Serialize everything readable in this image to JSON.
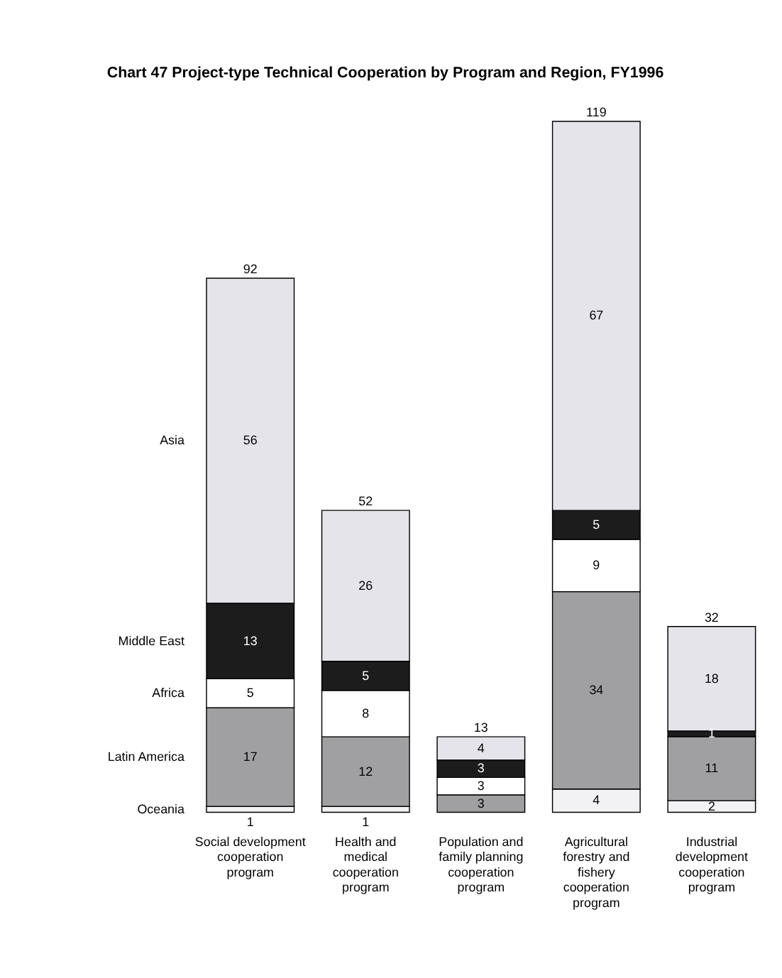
{
  "chart_data": {
    "type": "bar",
    "title": "Chart 47  Project-type Technical Cooperation by Program and Region, FY1996",
    "categories": [
      "Social development\ncooperation\nprogram",
      "Health and\nmedical\ncooperation\nprogram",
      "Population and\nfamily planning\ncooperation\nprogram",
      "Agricultural\nforestry and\nfishery\ncooperation\nprogram",
      "Industrial\ndevelopment\ncooperation\nprogram"
    ],
    "stacked": true,
    "data_labels": true,
    "series": [
      {
        "name": "Oceania",
        "color": "#f2f2f4",
        "values": [
          1,
          1,
          null,
          4,
          2
        ]
      },
      {
        "name": "Latin America",
        "color": "#a0a0a2",
        "values": [
          17,
          12,
          3,
          34,
          11
        ]
      },
      {
        "name": "Africa",
        "color": "#ffffff",
        "values": [
          5,
          8,
          3,
          9,
          null
        ]
      },
      {
        "name": "Middle East",
        "color": "#1c1c1c",
        "values": [
          13,
          5,
          3,
          5,
          1
        ]
      },
      {
        "name": "Asia",
        "color": "#e4e4ea",
        "values": [
          56,
          26,
          4,
          67,
          18
        ]
      }
    ],
    "totals": [
      "92",
      "52",
      "13",
      "119",
      "32"
    ]
  }
}
